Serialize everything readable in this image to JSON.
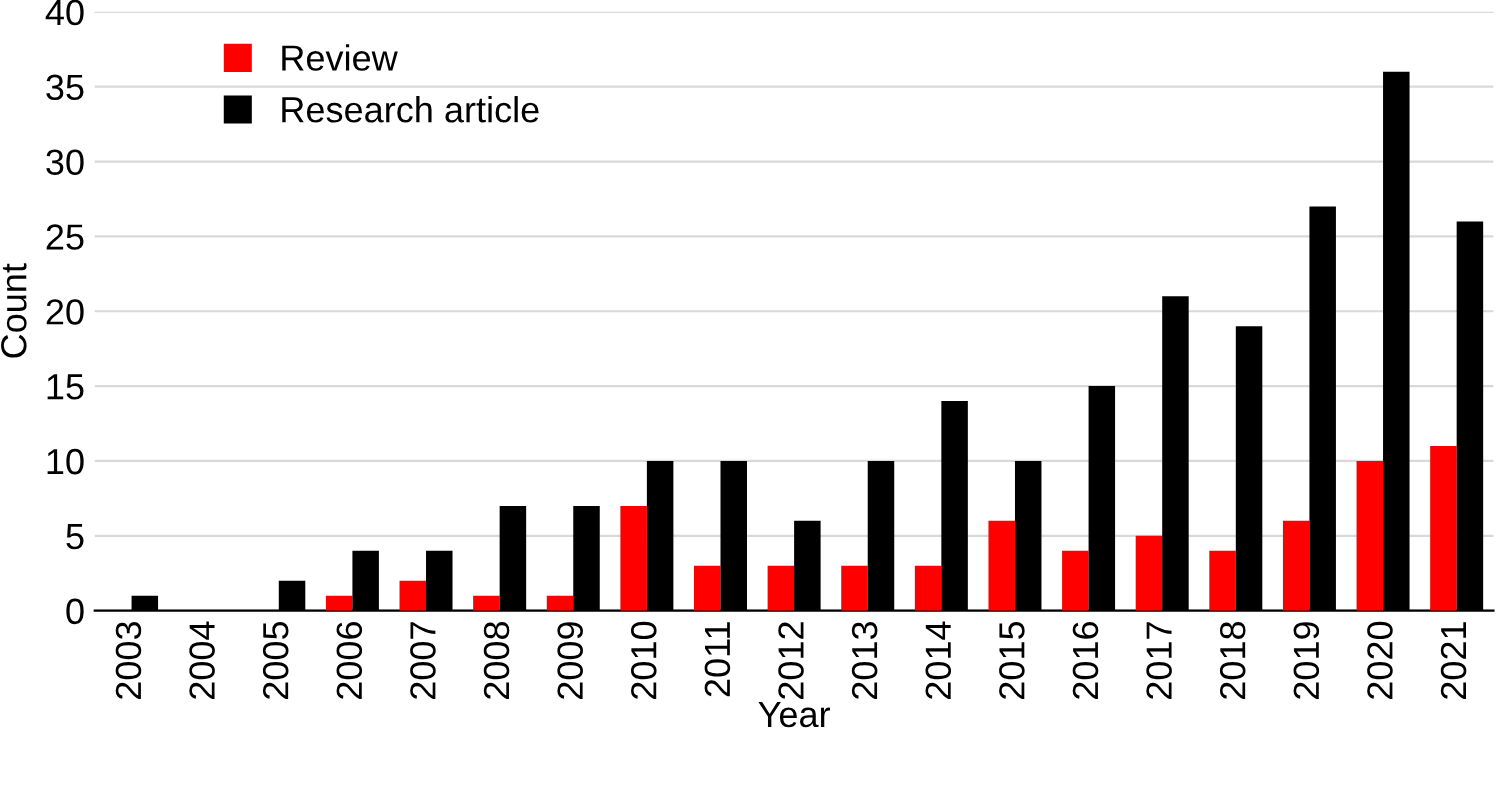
{
  "chart_data": {
    "type": "bar",
    "xlabel": "Year",
    "ylabel": "Count",
    "categories": [
      "2003",
      "2004",
      "2005",
      "2006",
      "2007",
      "2008",
      "2009",
      "2010",
      "2011",
      "2012",
      "2013",
      "2014",
      "2015",
      "2016",
      "2017",
      "2018",
      "2019",
      "2020",
      "2021"
    ],
    "series": [
      {
        "name": "Review",
        "color": "#ff0000",
        "values": [
          0,
          0,
          0,
          1,
          2,
          1,
          1,
          7,
          3,
          3,
          3,
          3,
          6,
          4,
          5,
          4,
          6,
          10,
          11
        ]
      },
      {
        "name": "Research article",
        "color": "#000000",
        "values": [
          1,
          0,
          2,
          4,
          4,
          7,
          7,
          10,
          10,
          6,
          10,
          14,
          10,
          15,
          21,
          19,
          27,
          36,
          26
        ]
      }
    ],
    "ylim": [
      0,
      40
    ],
    "yticks": [
      0,
      5,
      10,
      15,
      20,
      25,
      30,
      35,
      40
    ],
    "grid": "y",
    "legend": "top left"
  }
}
